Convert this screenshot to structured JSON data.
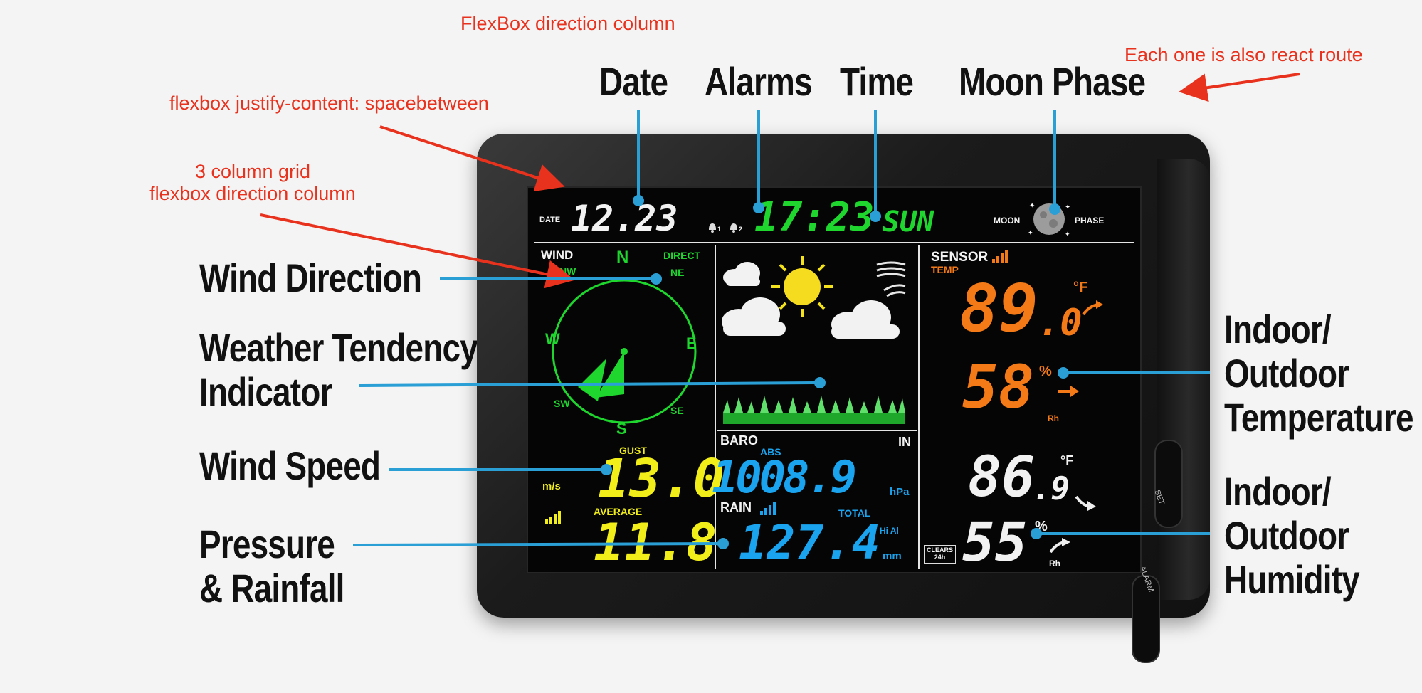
{
  "annotations": {
    "flex_column": "FlexBox direction column",
    "react_route": "Each one is also react route",
    "space_between": "flexbox justify-content: spacebetween",
    "grid_line1": "3 column grid",
    "grid_line2": "flexbox direction column"
  },
  "labels": {
    "date": "Date",
    "alarms": "Alarms",
    "time": "Time",
    "moon_phase": "Moon Phase",
    "wind_direction": "Wind Direction",
    "tendency_line1": "Weather Tendency",
    "tendency_line2": "Indicator",
    "wind_speed": "Wind Speed",
    "pressure_line1": "Pressure",
    "pressure_line2": "& Rainfall",
    "temp_line1": "Indoor/",
    "temp_line2": "Outdoor",
    "temp_line3": "Temperature",
    "hum_line1": "Indoor/",
    "hum_line2": "Outdoor",
    "hum_line3": "Humidity"
  },
  "display": {
    "date_label": "DATE",
    "date_value": "12.23",
    "alarm_1": "1",
    "alarm_2": "2",
    "time_value": "17:23",
    "weekday": "SUN",
    "moon_label": "MOON",
    "phase_label": "PHASE",
    "wind_label": "WIND",
    "direct_label": "DIRECT",
    "compass": {
      "n": "N",
      "ne": "NE",
      "e": "E",
      "se": "SE",
      "s": "S",
      "sw": "SW",
      "w": "W",
      "nw": "NW"
    },
    "gust_label": "GUST",
    "speed_unit": "m/s",
    "gust_value": "13.0",
    "average_label": "AVERAGE",
    "average_value": "11.8",
    "baro_label": "BARO",
    "abs_label": "ABS",
    "baro_value": "1008.9",
    "baro_unit": "hPa",
    "rain_label": "RAIN",
    "total_label": "TOTAL",
    "rain_value": "127.4",
    "rain_unit": "mm",
    "hi_al": "Hi Al",
    "sensor_label": "SENSOR",
    "temp_label": "TEMP",
    "out_temp_int": "89",
    "out_temp_dec": ".0",
    "out_temp_unit": "°F",
    "out_hum": "58",
    "out_hum_unit": "%",
    "rh_1": "Rh",
    "in_label": "IN",
    "in_temp_int": "86",
    "in_temp_dec": ".9",
    "in_temp_unit": "°F",
    "in_hum": "55",
    "in_hum_unit": "%",
    "rh_2": "Rh",
    "clears_label": "CLEARS",
    "clears_sub": "24h",
    "set_button": "SET",
    "alarm_button": "ALARM"
  },
  "colors": {
    "annotation": "#e8321e",
    "callout": "#2a9fd6",
    "lcd_green": "#1fd62e",
    "lcd_orange": "#f47a17",
    "lcd_yellow": "#f1ee1a",
    "lcd_blue": "#1aa3ee"
  },
  "icons": [
    "moon-icon",
    "sun-icon",
    "cloud-icon",
    "wind-icon",
    "grass-icon",
    "signal-icon",
    "bell-icon",
    "trend-arrow-icon"
  ]
}
